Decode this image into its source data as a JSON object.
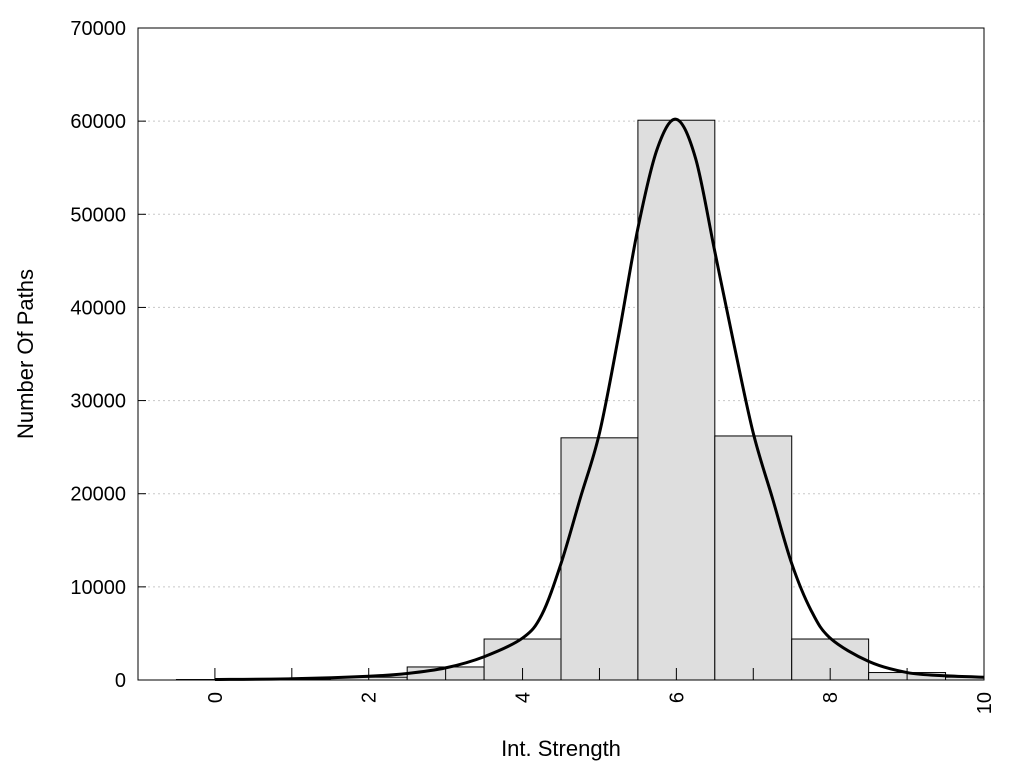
{
  "chart_data": {
    "type": "bar",
    "title": "",
    "xlabel": "Int. Strength",
    "ylabel": "Number Of Paths",
    "xlim": [
      -1,
      10
    ],
    "ylim": [
      0,
      70000
    ],
    "grid": "horizontal dotted",
    "bar_fill": "#dedede",
    "bar_stroke": "#000000",
    "curve_color": "#000000",
    "x_ticks": [
      {
        "value": 0,
        "label": "0"
      },
      {
        "value": 2,
        "label": "2"
      },
      {
        "value": 4,
        "label": "4"
      },
      {
        "value": 6,
        "label": "6"
      },
      {
        "value": 8,
        "label": "8"
      },
      {
        "value": 10,
        "label": "10"
      }
    ],
    "x_minor_ticks": [
      0,
      1,
      2,
      3,
      4,
      5,
      6,
      7,
      8,
      9,
      10
    ],
    "y_ticks": [
      {
        "value": 0,
        "label": "0"
      },
      {
        "value": 10000,
        "label": "10000"
      },
      {
        "value": 20000,
        "label": "20000"
      },
      {
        "value": 30000,
        "label": "30000"
      },
      {
        "value": 40000,
        "label": "40000"
      },
      {
        "value": 50000,
        "label": "50000"
      },
      {
        "value": 60000,
        "label": "60000"
      },
      {
        "value": 70000,
        "label": "70000"
      }
    ],
    "bars": [
      {
        "x": 0,
        "value": 50
      },
      {
        "x": 1,
        "value": 120
      },
      {
        "x": 2,
        "value": 300
      },
      {
        "x": 3,
        "value": 1400
      },
      {
        "x": 4,
        "value": 4400
      },
      {
        "x": 5,
        "value": 26000
      },
      {
        "x": 6,
        "value": 60100
      },
      {
        "x": 7,
        "value": 26200
      },
      {
        "x": 8,
        "value": 4400
      },
      {
        "x": 9,
        "value": 800
      },
      {
        "x": 10,
        "value": 300
      }
    ],
    "curve": [
      {
        "x": 0,
        "y": 50
      },
      {
        "x": 1,
        "y": 130
      },
      {
        "x": 2,
        "y": 400
      },
      {
        "x": 2.5,
        "y": 700
      },
      {
        "x": 3,
        "y": 1300
      },
      {
        "x": 3.5,
        "y": 2500
      },
      {
        "x": 4,
        "y": 4500
      },
      {
        "x": 4.25,
        "y": 7000
      },
      {
        "x": 4.5,
        "y": 12500
      },
      {
        "x": 4.75,
        "y": 19500
      },
      {
        "x": 5,
        "y": 26500
      },
      {
        "x": 5.25,
        "y": 37000
      },
      {
        "x": 5.5,
        "y": 48500
      },
      {
        "x": 5.75,
        "y": 57000
      },
      {
        "x": 6,
        "y": 60200
      },
      {
        "x": 6.25,
        "y": 56000
      },
      {
        "x": 6.5,
        "y": 46000
      },
      {
        "x": 6.75,
        "y": 36000
      },
      {
        "x": 7,
        "y": 26500
      },
      {
        "x": 7.25,
        "y": 19500
      },
      {
        "x": 7.5,
        "y": 12500
      },
      {
        "x": 7.75,
        "y": 7500
      },
      {
        "x": 8,
        "y": 4500
      },
      {
        "x": 8.5,
        "y": 2000
      },
      {
        "x": 9,
        "y": 800
      },
      {
        "x": 9.5,
        "y": 450
      },
      {
        "x": 10,
        "y": 300
      }
    ]
  }
}
